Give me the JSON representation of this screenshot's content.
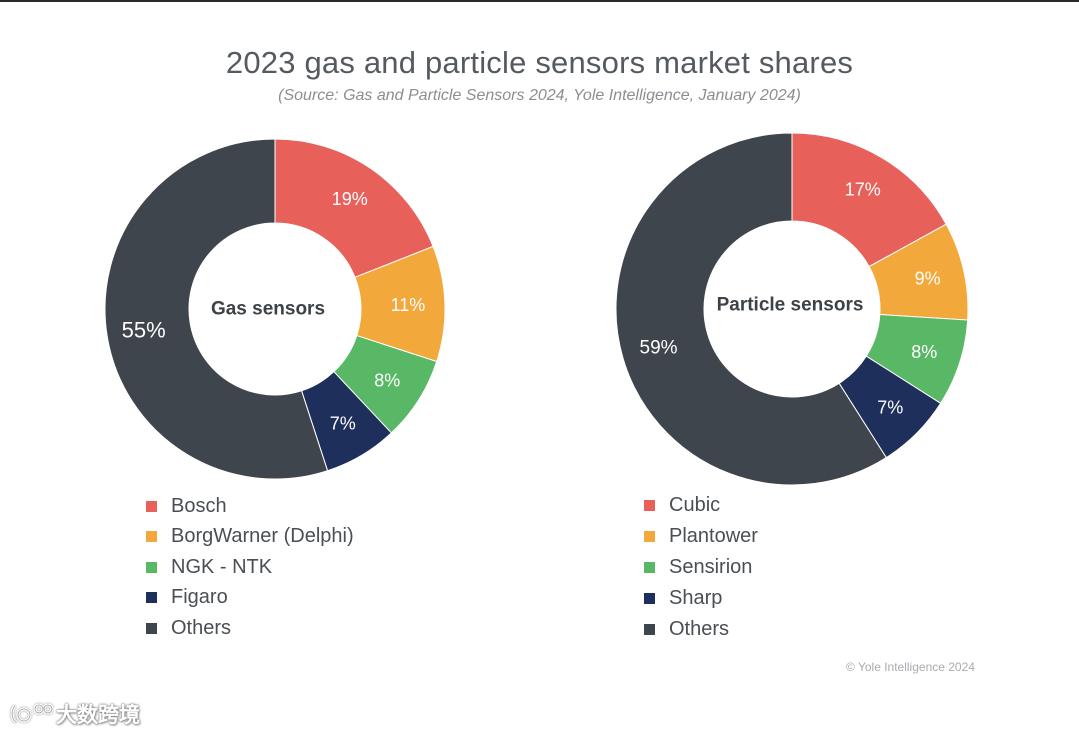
{
  "title": "2023 gas and particle sensors market shares",
  "subtitle": "(Source: Gas and Particle Sensors 2024, Yole Intelligence, January 2024)",
  "colors": {
    "red": "#e8605a",
    "orange": "#f2a83b",
    "green": "#59b866",
    "navy": "#1f2f5c",
    "dark": "#3f454c"
  },
  "chart_data": [
    {
      "type": "pie",
      "variant": "donut",
      "center_label": "Gas sensors",
      "categories": [
        "Bosch",
        "BorgWarner (Delphi)",
        "NGK - NTK",
        "Figaro",
        "Others"
      ],
      "values": [
        19,
        11,
        8,
        7,
        55
      ],
      "value_labels": [
        "19%",
        "11%",
        "8%",
        "7%",
        "55%"
      ],
      "colors": [
        "#e8605a",
        "#f2a83b",
        "#59b866",
        "#1f2f5c",
        "#3f454c"
      ],
      "legend_position": "bottom"
    },
    {
      "type": "pie",
      "variant": "donut",
      "center_label": "Particle sensors",
      "categories": [
        "Cubic",
        "Plantower",
        "Sensirion",
        "Sharp",
        "Others"
      ],
      "values": [
        17,
        9,
        8,
        7,
        59
      ],
      "value_labels": [
        "17%",
        "9%",
        "8%",
        "7%",
        "59%"
      ],
      "colors": [
        "#e8605a",
        "#f2a83b",
        "#59b866",
        "#1f2f5c",
        "#3f454c"
      ],
      "legend_position": "bottom"
    }
  ],
  "legend_gas": {
    "items": [
      {
        "label": "Bosch",
        "color": "#e8605a"
      },
      {
        "label": "BorgWarner (Delphi)",
        "color": "#f2a83b"
      },
      {
        "label": "NGK - NTK",
        "color": "#59b866"
      },
      {
        "label": "Figaro",
        "color": "#1f2f5c"
      },
      {
        "label": "Others",
        "color": "#3f454c"
      }
    ]
  },
  "legend_particle": {
    "items": [
      {
        "label": "Cubic",
        "color": "#e8605a"
      },
      {
        "label": "Plantower",
        "color": "#f2a83b"
      },
      {
        "label": "Sensirion",
        "color": "#59b866"
      },
      {
        "label": "Sharp",
        "color": "#1f2f5c"
      },
      {
        "label": "Others",
        "color": "#3f454c"
      }
    ]
  },
  "copyright": "© Yole Intelligence 2024",
  "watermark": {
    "text": "大数跨境",
    "icon": "logo-icon"
  }
}
